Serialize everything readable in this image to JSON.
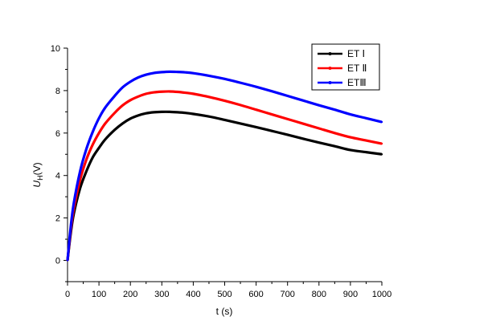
{
  "chart_data": {
    "type": "line",
    "title": "",
    "xlabel": "t (s)",
    "ylabel_main": "U",
    "ylabel_sub": "H",
    "ylabel_unit": "(V)",
    "xlim": [
      0,
      1000
    ],
    "ylim": [
      -1,
      10
    ],
    "xticks": [
      0,
      100,
      200,
      300,
      400,
      500,
      600,
      700,
      800,
      900,
      1000
    ],
    "yticks": [
      0,
      2,
      4,
      6,
      8,
      10
    ],
    "grid": false,
    "legend_position": "top-right",
    "series": [
      {
        "name": "ET Ⅰ",
        "color": "#000000",
        "x": [
          0,
          10,
          20,
          40,
          60,
          80,
          100,
          120,
          150,
          175,
          200,
          225,
          250,
          275,
          300,
          325,
          350,
          375,
          400,
          450,
          500,
          550,
          600,
          650,
          700,
          750,
          800,
          850,
          900,
          950,
          1000
        ],
        "y": [
          0,
          1.25,
          2.2,
          3.4,
          4.2,
          4.85,
          5.3,
          5.7,
          6.15,
          6.45,
          6.68,
          6.83,
          6.93,
          6.98,
          7.0,
          7.0,
          6.98,
          6.95,
          6.9,
          6.78,
          6.62,
          6.45,
          6.28,
          6.1,
          5.92,
          5.73,
          5.55,
          5.38,
          5.2,
          5.1,
          5.0
        ]
      },
      {
        "name": "ET Ⅱ",
        "color": "#ff0000",
        "x": [
          0,
          10,
          20,
          40,
          60,
          80,
          100,
          120,
          150,
          175,
          200,
          225,
          250,
          275,
          300,
          325,
          350,
          375,
          400,
          450,
          500,
          550,
          600,
          650,
          700,
          750,
          800,
          850,
          900,
          950,
          1000
        ],
        "y": [
          0,
          1.4,
          2.45,
          3.8,
          4.75,
          5.45,
          6.0,
          6.45,
          6.95,
          7.3,
          7.55,
          7.72,
          7.85,
          7.92,
          7.95,
          7.96,
          7.94,
          7.9,
          7.85,
          7.7,
          7.52,
          7.32,
          7.1,
          6.88,
          6.66,
          6.44,
          6.22,
          6.0,
          5.8,
          5.65,
          5.5
        ]
      },
      {
        "name": "ETⅢ",
        "color": "#0000ff",
        "x": [
          0,
          10,
          20,
          40,
          60,
          80,
          100,
          120,
          150,
          175,
          200,
          225,
          250,
          275,
          300,
          325,
          350,
          375,
          400,
          450,
          500,
          550,
          600,
          650,
          700,
          750,
          800,
          850,
          900,
          950,
          1000
        ],
        "y": [
          0,
          1.55,
          2.7,
          4.2,
          5.25,
          6.05,
          6.7,
          7.2,
          7.75,
          8.15,
          8.42,
          8.62,
          8.75,
          8.83,
          8.87,
          8.89,
          8.88,
          8.86,
          8.82,
          8.7,
          8.55,
          8.37,
          8.18,
          7.97,
          7.75,
          7.53,
          7.31,
          7.1,
          6.88,
          6.7,
          6.52
        ]
      }
    ]
  }
}
